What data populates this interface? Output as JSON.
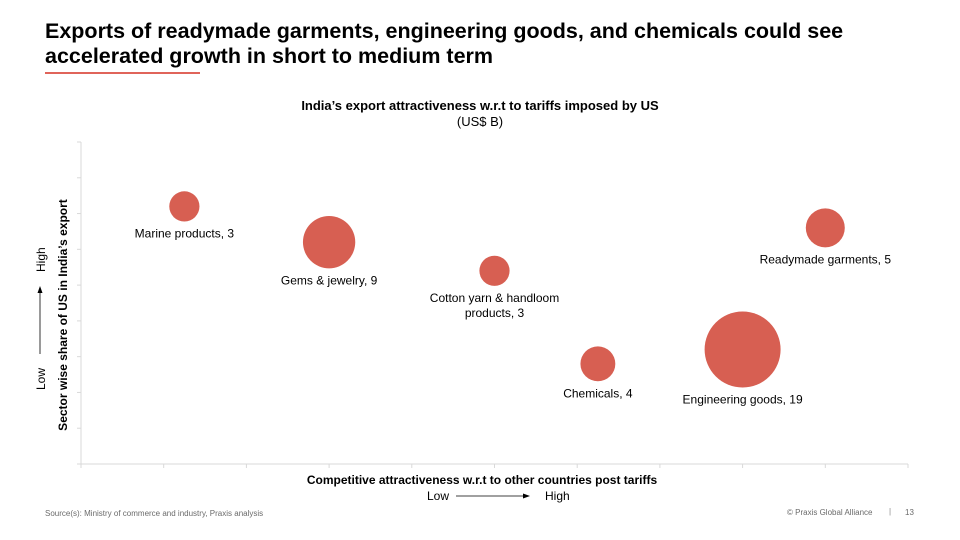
{
  "slide": {
    "title": "Exports of readymade garments, engineering goods, and chemicals could see accelerated growth in short to medium term",
    "accent_color": "#E0645A"
  },
  "chart_data": {
    "type": "scatter",
    "subtype": "bubble",
    "title": "India’s export attractiveness w.r.t to tariffs imposed by US",
    "subtitle": "(US$ B)",
    "xlabel": "Competitive attractiveness w.r.t to other countries post tariffs",
    "ylabel": "Sector wise share of US in India’s export",
    "x_direction": {
      "low": "Low",
      "high": "High"
    },
    "y_direction": {
      "low": "Low",
      "high": "High"
    },
    "xlim": [
      0,
      10
    ],
    "ylim": [
      0,
      9
    ],
    "x_ticks": 10,
    "y_ticks": 9,
    "tick_labels_shown": false,
    "grid": false,
    "bubble_color": "#D75F52",
    "size_unit": "US$ B",
    "points": [
      {
        "name": "Marine products",
        "label": "Marine products, 3",
        "x": 1.25,
        "y": 7.2,
        "size": 3
      },
      {
        "name": "Gems & jewelry",
        "label": "Gems & jewelry, 9",
        "x": 3.0,
        "y": 6.2,
        "size": 9
      },
      {
        "name": "Cotton yarn & handloom products",
        "label": "Cotton yarn & handloom products, 3",
        "label_lines": [
          "Cotton yarn & handloom",
          "products, 3"
        ],
        "x": 5.0,
        "y": 5.4,
        "size": 3
      },
      {
        "name": "Readymade garments",
        "label": "Readymade garments, 5",
        "x": 9.0,
        "y": 6.6,
        "size": 5
      },
      {
        "name": "Chemicals",
        "label": "Chemicals, 4",
        "x": 6.25,
        "y": 2.8,
        "size": 4
      },
      {
        "name": "Engineering goods",
        "label": "Engineering goods, 19",
        "x": 8.0,
        "y": 3.2,
        "size": 19
      }
    ]
  },
  "footer": {
    "source": "Source(s): Ministry of commerce and industry, Praxis analysis",
    "copyright": "© Praxis Global Alliance",
    "separator": "|",
    "page_number": "13"
  }
}
